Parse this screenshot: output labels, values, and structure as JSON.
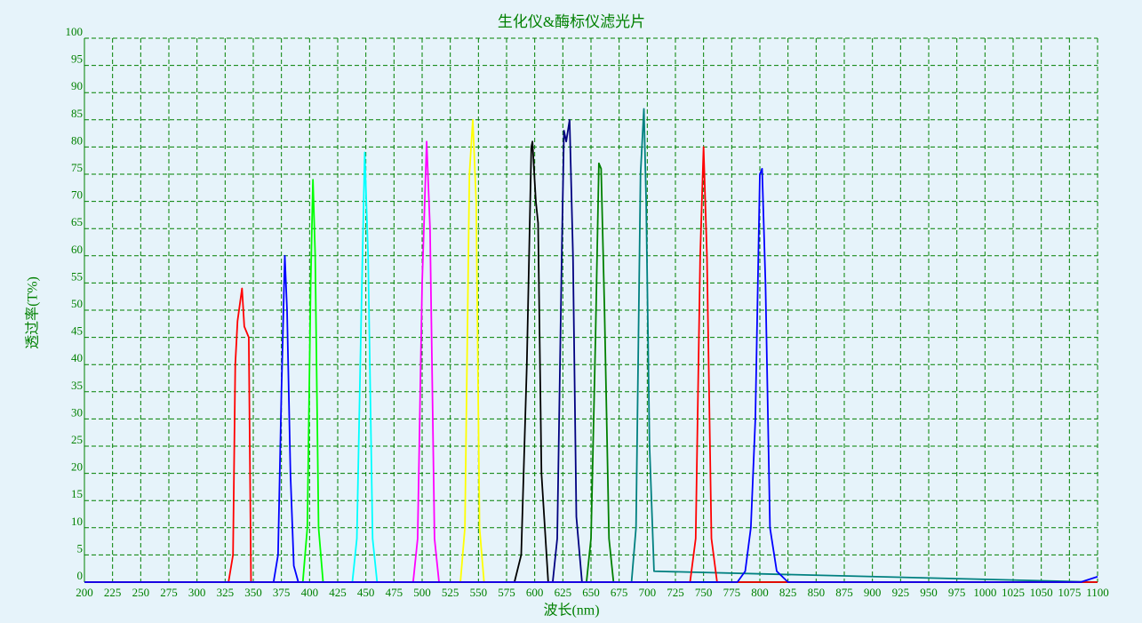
{
  "chart_data": {
    "type": "line",
    "title": "生化仪&酶标仪滤光片",
    "x_label": "波长(nm)",
    "y_label": "透过率(T%)",
    "xlim": [
      200,
      1100
    ],
    "ylim": [
      0,
      100
    ],
    "xticks": [
      200,
      225,
      250,
      275,
      300,
      325,
      350,
      375,
      400,
      425,
      450,
      475,
      500,
      525,
      550,
      575,
      600,
      625,
      650,
      675,
      700,
      725,
      750,
      775,
      800,
      825,
      850,
      875,
      900,
      925,
      950,
      975,
      1000,
      1025,
      1050,
      1075,
      1100
    ],
    "yticks": [
      0,
      5,
      10,
      15,
      20,
      25,
      30,
      35,
      40,
      45,
      50,
      55,
      60,
      65,
      70,
      75,
      80,
      85,
      90,
      95,
      100
    ],
    "grid": true,
    "series": [
      {
        "color": "#ff0000",
        "x": [
          200,
          328,
          332,
          334,
          336,
          340,
          342,
          344,
          346,
          348,
          1100
        ],
        "values": [
          0,
          0,
          5,
          40,
          48,
          54,
          47,
          46,
          45,
          0,
          0
        ]
      },
      {
        "color": "#0000ff",
        "x": [
          200,
          368,
          372,
          375,
          378,
          380,
          383,
          386,
          390,
          1100
        ],
        "values": [
          0,
          0,
          5,
          35,
          60,
          50,
          20,
          3,
          0,
          0
        ]
      },
      {
        "color": "#00ff00",
        "x": [
          200,
          394,
          398,
          401,
          403,
          405,
          408,
          412,
          1100
        ],
        "values": [
          0,
          0,
          10,
          55,
          74,
          60,
          10,
          0,
          0
        ]
      },
      {
        "color": "#00ffff",
        "x": [
          200,
          438,
          442,
          446,
          449,
          452,
          456,
          460,
          1100
        ],
        "values": [
          0,
          0,
          8,
          50,
          79,
          60,
          8,
          0,
          0
        ]
      },
      {
        "color": "#ff00ff",
        "x": [
          200,
          492,
          496,
          500,
          504,
          507,
          511,
          515,
          1100
        ],
        "values": [
          0,
          0,
          8,
          55,
          81,
          65,
          8,
          0,
          0
        ]
      },
      {
        "color": "#ffff00",
        "x": [
          200,
          534,
          538,
          542,
          545,
          548,
          551,
          555,
          1100
        ],
        "values": [
          0,
          0,
          10,
          75,
          85,
          70,
          10,
          0,
          0
        ]
      },
      {
        "color": "#000000",
        "x": [
          200,
          582,
          588,
          593,
          597,
          598,
          601,
          603,
          606,
          612,
          1100
        ],
        "values": [
          0,
          0,
          5,
          40,
          80,
          81,
          70,
          66,
          20,
          0,
          0
        ]
      },
      {
        "color": "#000080",
        "x": [
          200,
          616,
          620,
          624,
          626,
          628,
          631,
          634,
          637,
          642,
          1100
        ],
        "values": [
          0,
          0,
          8,
          60,
          83,
          81,
          85,
          60,
          12,
          0,
          0
        ]
      },
      {
        "color": "#008000",
        "x": [
          200,
          646,
          650,
          654,
          657,
          659,
          662,
          666,
          670,
          1100
        ],
        "values": [
          0,
          0,
          8,
          45,
          77,
          76,
          50,
          8,
          0,
          0
        ]
      },
      {
        "color": "#008080",
        "x": [
          200,
          686,
          690,
          694,
          697,
          699,
          702,
          706,
          1100
        ],
        "values": [
          0,
          0,
          10,
          75,
          87,
          70,
          25,
          2,
          0
        ]
      },
      {
        "color": "#ff0000",
        "x": [
          200,
          738,
          743,
          747,
          750,
          753,
          757,
          762,
          1100
        ],
        "values": [
          0,
          0,
          8,
          60,
          80,
          60,
          8,
          0,
          0
        ]
      },
      {
        "color": "#0000ff",
        "x": [
          200,
          780,
          787,
          792,
          796,
          800,
          802,
          805,
          809,
          815,
          825,
          1085,
          1100
        ],
        "values": [
          0,
          0,
          2,
          10,
          30,
          75,
          76,
          55,
          10,
          2,
          0,
          0,
          1
        ]
      }
    ]
  }
}
